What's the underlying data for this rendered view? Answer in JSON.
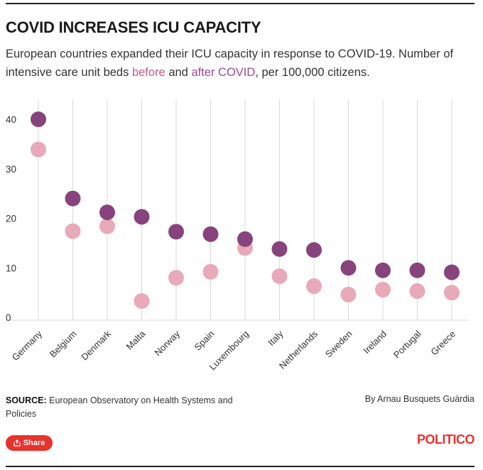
{
  "header": {
    "title": "COVID INCREASES ICU CAPACITY",
    "subtitle_part1": "European countries expanded their ICU capacity in response to COVID-19. Number of intensive care unit beds ",
    "subtitle_before": "before",
    "subtitle_and": " and ",
    "subtitle_after": "after COVID",
    "subtitle_part2": ", per 100,000 citizens."
  },
  "colors": {
    "before": "#e8a9b8",
    "after": "#87437c",
    "before_text": "#c45a8a",
    "after_text": "#9c4a8e",
    "grid": "#d9d9d9",
    "brand": "#e8322d"
  },
  "chart_data": {
    "type": "scatter",
    "categories": [
      "Germany",
      "Belgium",
      "Denmark",
      "Malta",
      "Norway",
      "Spain",
      "Luxembourg",
      "Italy",
      "Netherlands",
      "Sweden",
      "Ireland",
      "Portugal",
      "Greece"
    ],
    "series": [
      {
        "name": "before",
        "values": [
          33.9,
          17.4,
          18.4,
          3.3,
          8.0,
          9.2,
          14.0,
          8.3,
          6.3,
          4.6,
          5.6,
          5.3,
          5.0
        ]
      },
      {
        "name": "after COVID",
        "values": [
          40.0,
          24.0,
          21.2,
          20.3,
          17.3,
          16.8,
          15.8,
          13.8,
          13.6,
          10.0,
          9.5,
          9.5,
          9.1
        ]
      }
    ],
    "ylim": [
      0,
      40
    ],
    "yticks": [
      0,
      10,
      20,
      30,
      40
    ],
    "grid": true,
    "title": "",
    "xlabel": "",
    "ylabel": ""
  },
  "footer": {
    "source_label": "SOURCE:",
    "source_text": "European Observatory on Health Systems and Policies",
    "byline": "By Arnau Busquets Guàrdia",
    "share_label": "Share",
    "logo": "POLITICO"
  }
}
